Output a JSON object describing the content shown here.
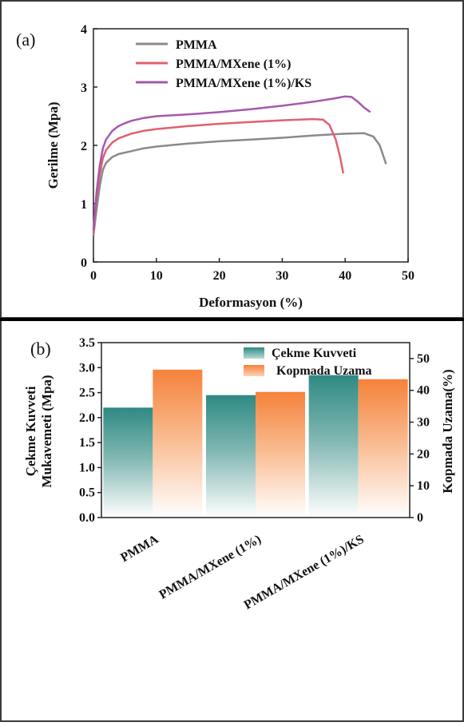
{
  "chart_data": [
    {
      "type": "line",
      "panel_label": "(a)",
      "xlabel": "Deformasyon (%)",
      "ylabel": "Gerilme (Mpa)",
      "xlim": [
        0,
        50
      ],
      "ylim": [
        0,
        4
      ],
      "xticks": [
        "0",
        "10",
        "20",
        "30",
        "40",
        "50"
      ],
      "yticks": [
        "0",
        "1",
        "2",
        "3",
        "4"
      ],
      "legend_position": "top-center",
      "series": [
        {
          "name": "PMMA",
          "color": "#8a8a8a",
          "points": [
            [
              0,
              0.45
            ],
            [
              0.5,
              0.9
            ],
            [
              1,
              1.3
            ],
            [
              1.5,
              1.58
            ],
            [
              2,
              1.7
            ],
            [
              3,
              1.8
            ],
            [
              4,
              1.85
            ],
            [
              6,
              1.9
            ],
            [
              8,
              1.95
            ],
            [
              10,
              1.98
            ],
            [
              15,
              2.03
            ],
            [
              20,
              2.07
            ],
            [
              25,
              2.1
            ],
            [
              30,
              2.13
            ],
            [
              35,
              2.17
            ],
            [
              40,
              2.2
            ],
            [
              43,
              2.21
            ],
            [
              44.5,
              2.15
            ],
            [
              45.5,
              2.0
            ],
            [
              46.5,
              1.68
            ]
          ]
        },
        {
          "name": "PMMA/MXene (1%)",
          "color": "#e06070",
          "points": [
            [
              0,
              0.5
            ],
            [
              0.5,
              1.1
            ],
            [
              1,
              1.5
            ],
            [
              1.5,
              1.78
            ],
            [
              2,
              1.92
            ],
            [
              3,
              2.05
            ],
            [
              4,
              2.12
            ],
            [
              6,
              2.2
            ],
            [
              8,
              2.25
            ],
            [
              10,
              2.28
            ],
            [
              15,
              2.33
            ],
            [
              20,
              2.37
            ],
            [
              25,
              2.4
            ],
            [
              30,
              2.43
            ],
            [
              35,
              2.45
            ],
            [
              36.5,
              2.44
            ],
            [
              37.5,
              2.35
            ],
            [
              38.5,
              2.1
            ],
            [
              39.2,
              1.8
            ],
            [
              39.7,
              1.52
            ]
          ]
        },
        {
          "name": "PMMA/MXene (1%)/KS",
          "color": "#a658ad",
          "points": [
            [
              0,
              0.55
            ],
            [
              0.5,
              1.2
            ],
            [
              1,
              1.65
            ],
            [
              1.5,
              1.95
            ],
            [
              2,
              2.1
            ],
            [
              3,
              2.25
            ],
            [
              4,
              2.33
            ],
            [
              5,
              2.38
            ],
            [
              6,
              2.42
            ],
            [
              8,
              2.47
            ],
            [
              10,
              2.5
            ],
            [
              15,
              2.53
            ],
            [
              20,
              2.57
            ],
            [
              25,
              2.62
            ],
            [
              30,
              2.68
            ],
            [
              35,
              2.75
            ],
            [
              38,
              2.8
            ],
            [
              40,
              2.84
            ],
            [
              41,
              2.83
            ],
            [
              42,
              2.75
            ],
            [
              43,
              2.65
            ],
            [
              44,
              2.57
            ]
          ]
        }
      ]
    },
    {
      "type": "bar",
      "panel_label": "(b)",
      "categories": [
        "PMMA",
        "PMMA/MXene (1%)",
        "PMMA/MXene (1%)/KS"
      ],
      "ylabel_left_line1": "Çekme Kuvveti",
      "ylabel_left_line2": "Mukavemeti (Mpa)",
      "ylabel_right": "Kopmada Uzama(%)",
      "ylim_left": [
        0,
        3.5
      ],
      "ylim_right": [
        0,
        55
      ],
      "yticks_left": [
        "0.0",
        "0.5",
        "1.0",
        "1.5",
        "2.0",
        "2.5",
        "3.0",
        "3.5"
      ],
      "yticks_right": [
        "0",
        "10",
        "20",
        "30",
        "40",
        "50"
      ],
      "legend_position": "top-right",
      "series": [
        {
          "name": "Çekme Kuvveti",
          "axis": "left",
          "color": "#2f8a84",
          "values": [
            2.2,
            2.45,
            2.85
          ]
        },
        {
          "name": "Kopmada Uzama",
          "axis": "right",
          "color": "#f5823a",
          "values": [
            46.5,
            39.5,
            43.5
          ]
        }
      ]
    }
  ]
}
